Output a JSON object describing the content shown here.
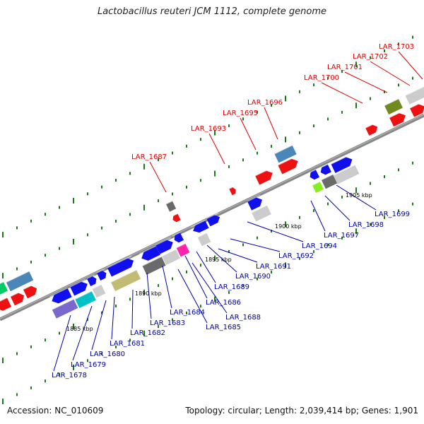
{
  "title": "Lactobacillus reuteri JCM 1112, complete genome",
  "accession": "Accession: NC_010609",
  "summary": "Topology: circular; Length: 2,039,414 bp; Genes: 1,901",
  "colors": {
    "backbone": "#888888",
    "top_label": "#dd0000",
    "bottom_label": "#0000aa",
    "tick": "#1a7a1a"
  },
  "scale_labels": [
    "1885 kbp",
    "1890 kbp",
    "1895 kbp",
    "1900 kbp",
    "1905 kbp"
  ],
  "top_gene_labels": [
    "LAR_1687",
    "LAR_1693",
    "LAR_1695",
    "LAR_1696",
    "LAR_1700",
    "LAR_1701",
    "LAR_1702",
    "LAR_1703"
  ],
  "bottom_gene_labels": [
    "LAR_1678",
    "LAR_1679",
    "LAR_1680",
    "LAR_1681",
    "LAR_1682",
    "LAR_1683",
    "LAR_1684",
    "LAR_1685",
    "LAR_1686",
    "LAR_1688",
    "LAR_1689",
    "LAR_1690",
    "LAR_1691",
    "LAR_1692",
    "LAR_1694",
    "LAR_1697",
    "LAR_1698",
    "LAR_1699"
  ],
  "feature_colors": {
    "cds_forward": "#1010ee",
    "cds_reverse": "#ee1111",
    "steelblue": "#4a86b8",
    "teal": "#00c0c8",
    "green": "#00cc66",
    "olive": "#c2bb73",
    "darkgray": "#6a6a6a",
    "lightgray": "#cccccc",
    "magenta": "#ff22aa",
    "purple": "#7a68cc",
    "darkolive": "#6f8a1e",
    "lime": "#88ee22"
  }
}
